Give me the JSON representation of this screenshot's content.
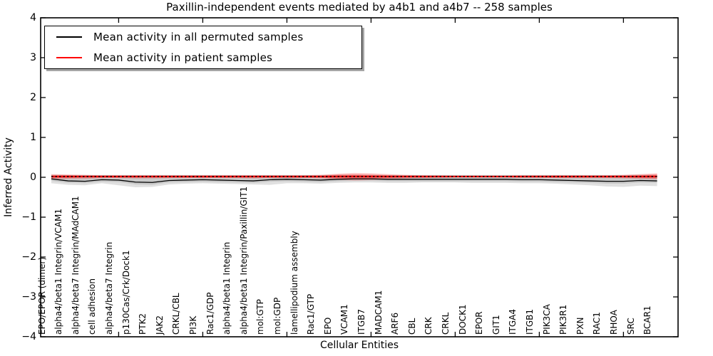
{
  "title": "Paxillin-independent events mediated by a4b1 and a4b7 -- 258 samples",
  "axes": {
    "ylabel": "Inferred Activity",
    "xlabel": "Cellular Entities"
  },
  "legend": {
    "items": [
      {
        "label": "Mean activity in all permuted samples",
        "color": "#000000"
      },
      {
        "label": "Mean activity in patient samples",
        "color": "#ff0000"
      }
    ],
    "position": "upper left",
    "shadow": true
  },
  "chart_data": {
    "type": "line",
    "title": "Paxillin-independent events mediated by a4b1 and a4b7 -- 258 samples",
    "xlabel": "Cellular Entities",
    "ylabel": "Inferred Activity",
    "ylim": [
      -4,
      4
    ],
    "grid": false,
    "ytick_values": [
      4,
      3,
      2,
      1,
      0,
      -1,
      -2,
      -3,
      -4
    ],
    "ytick_labels": [
      "4",
      "3",
      "2",
      "1",
      "0",
      "−1",
      "−2",
      "−3",
      "−4"
    ],
    "xtick_positions_units": [
      5,
      10,
      15,
      20,
      25,
      30,
      35
    ],
    "categories": [
      "EPO/EPOR (dimer)",
      "alpha4/beta1 Integrin/VCAM1",
      "alpha4/beta7 Integrin/MAdCAM1",
      "cell adhesion",
      "alpha4/beta7 Integrin",
      "p130Cas/Crk/Dock1",
      "PTK2",
      "JAK2",
      "CRKL/CBL",
      "PI3K",
      "Rac1/GDP",
      "alpha4/beta1 Integrin",
      "alpha4/beta1 Integrin/Paxillin/GIT1",
      "mol:GTP",
      "mol:GDP",
      "lamellipodium assembly",
      "Rac1/GTP",
      "EPO",
      "VCAM1",
      "ITGB7",
      "MADCAM1",
      "ARF6",
      "CBL",
      "CRK",
      "CRKL",
      "DOCK1",
      "EPOR",
      "GIT1",
      "ITGA4",
      "ITGB1",
      "PIK3CA",
      "PIK3R1",
      "PXN",
      "RAC1",
      "RHOA",
      "SRC",
      "BCAR1"
    ],
    "series": [
      {
        "name": "Mean activity in all permuted samples",
        "color": "#000000",
        "style": "solid",
        "width": 1.3,
        "values": [
          -0.04,
          -0.09,
          -0.1,
          -0.06,
          -0.07,
          -0.12,
          -0.13,
          -0.08,
          -0.07,
          -0.06,
          -0.07,
          -0.08,
          -0.09,
          -0.06,
          -0.05,
          -0.06,
          -0.07,
          -0.05,
          -0.04,
          -0.04,
          -0.05,
          -0.05,
          -0.05,
          -0.05,
          -0.05,
          -0.05,
          -0.05,
          -0.05,
          -0.06,
          -0.06,
          -0.07,
          -0.08,
          -0.09,
          -0.1,
          -0.1,
          -0.08,
          -0.09
        ]
      },
      {
        "name": "Mean activity in patient samples",
        "color": "#ff0000",
        "style": "solid",
        "width": 2,
        "values": [
          0.02,
          0.02,
          0.02,
          0.02,
          0.02,
          0.02,
          0.02,
          0.02,
          0.02,
          0.02,
          0.02,
          0.02,
          0.02,
          0.02,
          0.02,
          0.02,
          0.02,
          0.02,
          0.02,
          0.02,
          0.02,
          0.02,
          0.02,
          0.02,
          0.02,
          0.02,
          0.02,
          0.02,
          0.02,
          0.02,
          0.02,
          0.02,
          0.02,
          0.02,
          0.02,
          0.02,
          0.02
        ]
      }
    ],
    "reference_line": {
      "name": "patient mean overlay (dotted)",
      "value": 0.02,
      "color": "#000000",
      "style": "dotted"
    },
    "bands": [
      {
        "name": "permuted-outer",
        "color": "rgba(0,0,0,0.12)",
        "upper": [
          0.07,
          0.06,
          0.06,
          0.06,
          0.06,
          0.06,
          0.06,
          0.06,
          0.06,
          0.06,
          0.06,
          0.06,
          0.06,
          0.06,
          0.06,
          0.06,
          0.06,
          0.07,
          0.07,
          0.07,
          0.06,
          0.06,
          0.06,
          0.06,
          0.06,
          0.06,
          0.06,
          0.06,
          0.06,
          0.06,
          0.06,
          0.06,
          0.06,
          0.06,
          0.06,
          0.07,
          0.07
        ],
        "lower": [
          -0.15,
          -0.19,
          -0.2,
          -0.15,
          -0.2,
          -0.25,
          -0.24,
          -0.18,
          -0.16,
          -0.15,
          -0.16,
          -0.17,
          -0.18,
          -0.19,
          -0.15,
          -0.15,
          -0.16,
          -0.14,
          -0.13,
          -0.13,
          -0.14,
          -0.14,
          -0.13,
          -0.13,
          -0.13,
          -0.14,
          -0.14,
          -0.14,
          -0.15,
          -0.15,
          -0.16,
          -0.18,
          -0.2,
          -0.23,
          -0.24,
          -0.21,
          -0.22
        ]
      },
      {
        "name": "permuted-inner",
        "color": "rgba(0,0,0,0.10)",
        "upper": [
          0.05,
          0.05,
          0.05,
          0.05,
          0.05,
          0.05,
          0.05,
          0.05,
          0.05,
          0.05,
          0.05,
          0.05,
          0.05,
          0.05,
          0.05,
          0.05,
          0.05,
          0.05,
          0.05,
          0.05,
          0.05,
          0.05,
          0.05,
          0.05,
          0.05,
          0.05,
          0.05,
          0.05,
          0.05,
          0.05,
          0.05,
          0.05,
          0.05,
          0.05,
          0.05,
          0.05,
          0.05
        ],
        "lower": [
          -0.09,
          -0.14,
          -0.15,
          -0.11,
          -0.12,
          -0.18,
          -0.19,
          -0.13,
          -0.12,
          -0.11,
          -0.12,
          -0.13,
          -0.14,
          -0.11,
          -0.1,
          -0.11,
          -0.12,
          -0.1,
          -0.09,
          -0.09,
          -0.1,
          -0.1,
          -0.1,
          -0.1,
          -0.1,
          -0.1,
          -0.1,
          -0.1,
          -0.11,
          -0.11,
          -0.12,
          -0.13,
          -0.14,
          -0.16,
          -0.16,
          -0.13,
          -0.14
        ]
      },
      {
        "name": "patient-outer",
        "color": "rgba(255,0,0,0.22)",
        "upper": [
          0.08,
          0.07,
          0.06,
          0.05,
          0.05,
          0.05,
          0.05,
          0.05,
          0.05,
          0.05,
          0.05,
          0.05,
          0.05,
          0.05,
          0.05,
          0.05,
          0.06,
          0.09,
          0.11,
          0.1,
          0.08,
          0.06,
          0.05,
          0.05,
          0.04,
          0.04,
          0.04,
          0.04,
          0.05,
          0.05,
          0.05,
          0.05,
          0.05,
          0.05,
          0.06,
          0.08,
          0.1
        ],
        "lower": [
          -0.05,
          -0.04,
          -0.04,
          -0.02,
          -0.02,
          -0.03,
          -0.03,
          -0.02,
          -0.02,
          -0.02,
          -0.02,
          -0.02,
          -0.03,
          -0.02,
          -0.02,
          -0.02,
          -0.03,
          -0.06,
          -0.08,
          -0.07,
          -0.05,
          -0.03,
          -0.02,
          -0.02,
          -0.01,
          -0.01,
          -0.01,
          -0.01,
          -0.02,
          -0.02,
          -0.02,
          -0.02,
          -0.02,
          -0.02,
          -0.03,
          -0.04,
          -0.05
        ]
      },
      {
        "name": "patient-inner",
        "color": "rgba(255,0,0,0.30)",
        "upper": [
          0.05,
          0.05,
          0.04,
          0.04,
          0.04,
          0.04,
          0.04,
          0.04,
          0.04,
          0.04,
          0.04,
          0.04,
          0.04,
          0.04,
          0.04,
          0.04,
          0.04,
          0.06,
          0.07,
          0.06,
          0.05,
          0.04,
          0.04,
          0.03,
          0.03,
          0.03,
          0.03,
          0.03,
          0.03,
          0.03,
          0.04,
          0.04,
          0.04,
          0.04,
          0.04,
          0.05,
          0.07
        ],
        "lower": [
          -0.02,
          -0.02,
          -0.01,
          -0.01,
          -0.01,
          -0.01,
          -0.01,
          -0.01,
          -0.01,
          -0.01,
          -0.01,
          -0.01,
          -0.01,
          -0.01,
          -0.01,
          -0.01,
          -0.01,
          -0.03,
          -0.04,
          -0.03,
          -0.02,
          -0.01,
          -0.01,
          0.0,
          0.0,
          0.0,
          0.0,
          0.0,
          0.0,
          0.0,
          -0.01,
          -0.01,
          -0.01,
          -0.01,
          -0.01,
          -0.02,
          -0.03
        ]
      }
    ]
  }
}
